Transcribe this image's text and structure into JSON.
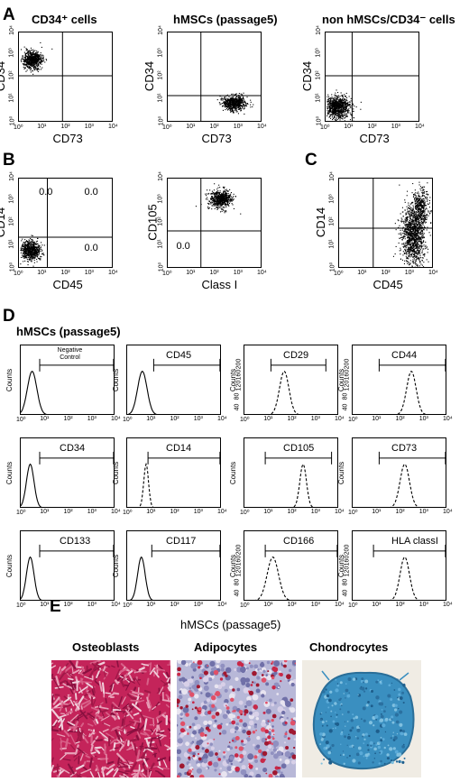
{
  "panels": {
    "A": {
      "letter": "A"
    },
    "B": {
      "letter": "B"
    },
    "C": {
      "letter": "C"
    },
    "D": {
      "letter": "D",
      "heading": "hMSCs (passage5)"
    },
    "E": {
      "letter": "E",
      "heading": "hMSCs (passage5)"
    }
  },
  "scatter_plots": [
    {
      "id": "a1",
      "title": "CD34⁺ cells",
      "xlabel": "CD73",
      "ylabel": "CD34",
      "quadrants": []
    },
    {
      "id": "a2",
      "title": "hMSCs (passage5)",
      "xlabel": "CD73",
      "ylabel": "CD34",
      "quadrants": []
    },
    {
      "id": "a3",
      "title": "non hMSCs/CD34⁻ cells",
      "xlabel": "CD73",
      "ylabel": "CD34",
      "quadrants": []
    },
    {
      "id": "b1",
      "title": "",
      "xlabel": "CD45",
      "ylabel": "CD14",
      "quadrants": [
        "0.0",
        "0.0",
        "0.0"
      ]
    },
    {
      "id": "b2",
      "title": "",
      "xlabel": "Class I",
      "ylabel": "CD105",
      "quadrants": [
        "0.0"
      ]
    },
    {
      "id": "c1",
      "title": "",
      "xlabel": "CD45",
      "ylabel": "CD14",
      "quadrants": []
    }
  ],
  "axis_ticks": {
    "x": [
      "10⁰",
      "10¹",
      "10²",
      "10³",
      "10⁴"
    ],
    "y": [
      "10⁰",
      "10¹",
      "10²",
      "10³",
      "10⁴"
    ]
  },
  "histograms": [
    {
      "id": "h1",
      "marker": "Negative Control",
      "ylabel": "Counts",
      "yticks": []
    },
    {
      "id": "h2",
      "marker": "CD45",
      "ylabel": "Counts",
      "yticks": []
    },
    {
      "id": "h3",
      "marker": "CD29",
      "ylabel": "Counts",
      "yticks": [
        "40",
        "80",
        "120",
        "160",
        "200"
      ]
    },
    {
      "id": "h4",
      "marker": "CD44",
      "ylabel": "Counts",
      "yticks": [
        "40",
        "80",
        "120",
        "160",
        "200"
      ]
    },
    {
      "id": "h5",
      "marker": "CD34",
      "ylabel": "Counts",
      "yticks": []
    },
    {
      "id": "h6",
      "marker": "CD14",
      "ylabel": "Counts",
      "yticks": []
    },
    {
      "id": "h7",
      "marker": "CD105",
      "ylabel": "Counts",
      "yticks": []
    },
    {
      "id": "h8",
      "marker": "CD73",
      "ylabel": "Counts",
      "yticks": []
    },
    {
      "id": "h9",
      "marker": "CD133",
      "ylabel": "Counts",
      "yticks": []
    },
    {
      "id": "h10",
      "marker": "CD117",
      "ylabel": "Counts",
      "yticks": []
    },
    {
      "id": "h11",
      "marker": "CD166",
      "ylabel": "Counts",
      "yticks": [
        "40",
        "80",
        "120",
        "160",
        "200"
      ]
    },
    {
      "id": "h12",
      "marker": "HLA classI",
      "ylabel": "Counts",
      "yticks": [
        "40",
        "80",
        "120",
        "160",
        "200"
      ]
    }
  ],
  "micrographs": [
    {
      "id": "osteo",
      "label": "Osteoblasts"
    },
    {
      "id": "adipo",
      "label": "Adipocytes"
    },
    {
      "id": "chondro",
      "label": "Chondrocytes"
    }
  ],
  "colors": {
    "osteo_base": "#c4245a",
    "adipo_base": "#b8b8d8",
    "chondro_base": "#3a8fc0",
    "chondro_bg": "#f0ece4"
  }
}
